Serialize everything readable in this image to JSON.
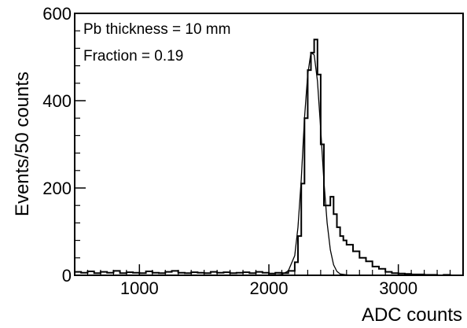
{
  "chart_data": {
    "type": "line",
    "xlabel": "ADC counts",
    "ylabel": "Events/50 counts",
    "xlim": [
      500,
      3500
    ],
    "ylim": [
      0,
      600
    ],
    "x_ticks": [
      1000,
      2000,
      3000
    ],
    "x_tick_labels": [
      "1000",
      "2000",
      "3000"
    ],
    "y_ticks": [
      0,
      200,
      400,
      600
    ],
    "y_tick_labels": [
      "0",
      "200",
      "400",
      "600"
    ],
    "annotations": [
      "Pb thickness = 10 mm",
      "Fraction =  0.19"
    ],
    "grid": false,
    "series": [
      {
        "style": "histogram",
        "x": [
          500,
          550,
          600,
          650,
          700,
          750,
          800,
          850,
          900,
          950,
          1000,
          1050,
          1100,
          1150,
          1200,
          1250,
          1300,
          1350,
          1400,
          1450,
          1500,
          1550,
          1600,
          1650,
          1700,
          1750,
          1800,
          1850,
          1900,
          1950,
          2000,
          2050,
          2100,
          2150,
          2200,
          2225,
          2250,
          2275,
          2300,
          2325,
          2350,
          2375,
          2400,
          2425,
          2450,
          2475,
          2500,
          2525,
          2550,
          2575,
          2600,
          2650,
          2700,
          2750,
          2800,
          2850,
          2900,
          2950,
          3000,
          3050,
          3100,
          3150,
          3200,
          3250,
          3300,
          3350,
          3400,
          3450
        ],
        "values": [
          8,
          6,
          9,
          5,
          8,
          6,
          10,
          5,
          7,
          6,
          5,
          9,
          6,
          5,
          8,
          10,
          6,
          5,
          7,
          6,
          5,
          8,
          6,
          7,
          5,
          6,
          7,
          5,
          8,
          6,
          4,
          6,
          5,
          10,
          30,
          90,
          210,
          360,
          470,
          510,
          540,
          460,
          300,
          160,
          160,
          180,
          140,
          110,
          90,
          80,
          70,
          55,
          40,
          32,
          20,
          15,
          8,
          5,
          4,
          3,
          2,
          2,
          1,
          1,
          0,
          1,
          0,
          0
        ]
      },
      {
        "style": "smooth",
        "name": "",
        "x": [
          2000,
          2100,
          2150,
          2200,
          2225,
          2250,
          2275,
          2300,
          2325,
          2350,
          2375,
          2400,
          2425,
          2450,
          2475,
          2500,
          2525,
          2550,
          2600,
          2650,
          2700
        ],
        "values": [
          0,
          2,
          10,
          45,
          110,
          220,
          360,
          460,
          510,
          505,
          445,
          335,
          215,
          120,
          58,
          24,
          9,
          3,
          1,
          0,
          0
        ]
      }
    ]
  }
}
